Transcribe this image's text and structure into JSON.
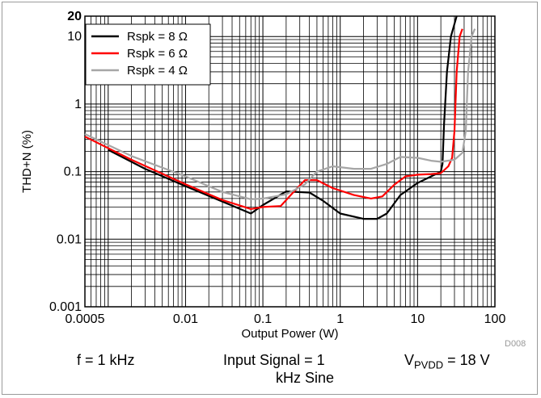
{
  "chart_data": {
    "type": "line",
    "xlabel": "Output Power (W)",
    "ylabel": "THD+N (%)",
    "x_scale": "log",
    "y_scale": "log",
    "xlim": [
      0.0005,
      100
    ],
    "ylim": [
      0.001,
      20
    ],
    "grid": true,
    "legend_placement": "top-left",
    "x_ticks": [
      {
        "value": 0.0005,
        "label": "0.0005"
      },
      {
        "value": 0.01,
        "label": "0.01"
      },
      {
        "value": 0.1,
        "label": "0.1"
      },
      {
        "value": 1,
        "label": "1"
      },
      {
        "value": 10,
        "label": "10"
      },
      {
        "value": 100,
        "label": "100"
      }
    ],
    "y_ticks": [
      {
        "value": 0.001,
        "label": "0.001"
      },
      {
        "value": 0.01,
        "label": "0.01"
      },
      {
        "value": 0.1,
        "label": "0.1"
      },
      {
        "value": 1,
        "label": "1"
      },
      {
        "value": 10,
        "label": "10"
      },
      {
        "value": 20,
        "label": "20"
      }
    ],
    "series": [
      {
        "name": "Rspk = 8 Ω",
        "color": "#000000",
        "points": [
          [
            0.001,
            0.21
          ],
          [
            0.003,
            0.11
          ],
          [
            0.01,
            0.061
          ],
          [
            0.03,
            0.036
          ],
          [
            0.07,
            0.024
          ],
          [
            0.1,
            0.032
          ],
          [
            0.2,
            0.051
          ],
          [
            0.4,
            0.049
          ],
          [
            0.6,
            0.037
          ],
          [
            1.0,
            0.024
          ],
          [
            2.0,
            0.02
          ],
          [
            3.0,
            0.02
          ],
          [
            4.0,
            0.024
          ],
          [
            6.0,
            0.045
          ],
          [
            10,
            0.068
          ],
          [
            15,
            0.085
          ],
          [
            20,
            0.1
          ],
          [
            21,
            0.13
          ],
          [
            22,
            0.5
          ],
          [
            24,
            3
          ],
          [
            27,
            10
          ],
          [
            32,
            20
          ]
        ]
      },
      {
        "name": "Rspk = 6 Ω",
        "color": "#ff0000",
        "points": [
          [
            0.0005,
            0.33
          ],
          [
            0.002,
            0.15
          ],
          [
            0.01,
            0.065
          ],
          [
            0.03,
            0.038
          ],
          [
            0.07,
            0.028
          ],
          [
            0.1,
            0.03
          ],
          [
            0.17,
            0.031
          ],
          [
            0.25,
            0.05
          ],
          [
            0.35,
            0.075
          ],
          [
            0.5,
            0.075
          ],
          [
            0.8,
            0.057
          ],
          [
            1.5,
            0.045
          ],
          [
            2.5,
            0.04
          ],
          [
            3.5,
            0.043
          ],
          [
            5.0,
            0.064
          ],
          [
            7.0,
            0.085
          ],
          [
            10,
            0.09
          ],
          [
            15,
            0.092
          ],
          [
            20,
            0.095
          ],
          [
            25,
            0.12
          ],
          [
            28,
            0.16
          ],
          [
            30,
            0.4
          ],
          [
            32,
            3
          ],
          [
            35,
            10
          ],
          [
            38,
            13
          ]
        ]
      },
      {
        "name": "Rspk = 4 Ω",
        "color": "#a6a6a6",
        "points": [
          [
            0.0005,
            0.36
          ],
          [
            0.002,
            0.17
          ],
          [
            0.01,
            0.085
          ],
          [
            0.03,
            0.05
          ],
          [
            0.07,
            0.039
          ],
          [
            0.1,
            0.04
          ],
          [
            0.2,
            0.046
          ],
          [
            0.35,
            0.065
          ],
          [
            0.5,
            0.1
          ],
          [
            0.8,
            0.12
          ],
          [
            1.5,
            0.11
          ],
          [
            2.5,
            0.11
          ],
          [
            4.0,
            0.13
          ],
          [
            6.0,
            0.165
          ],
          [
            10,
            0.16
          ],
          [
            15,
            0.145
          ],
          [
            20,
            0.14
          ],
          [
            30,
            0.15
          ],
          [
            38,
            0.19
          ],
          [
            42,
            0.4
          ],
          [
            45,
            3
          ],
          [
            50,
            10
          ],
          [
            55,
            13
          ]
        ]
      }
    ]
  },
  "doc_id": "D008",
  "caption": {
    "freq": "f = 1 kHz",
    "signal_line1": "Input Signal = 1",
    "signal_line2": "kHz Sine",
    "vpvdd_label": "V",
    "vpvdd_sub": "PVDD",
    "vpvdd_value": " = 18 V"
  }
}
